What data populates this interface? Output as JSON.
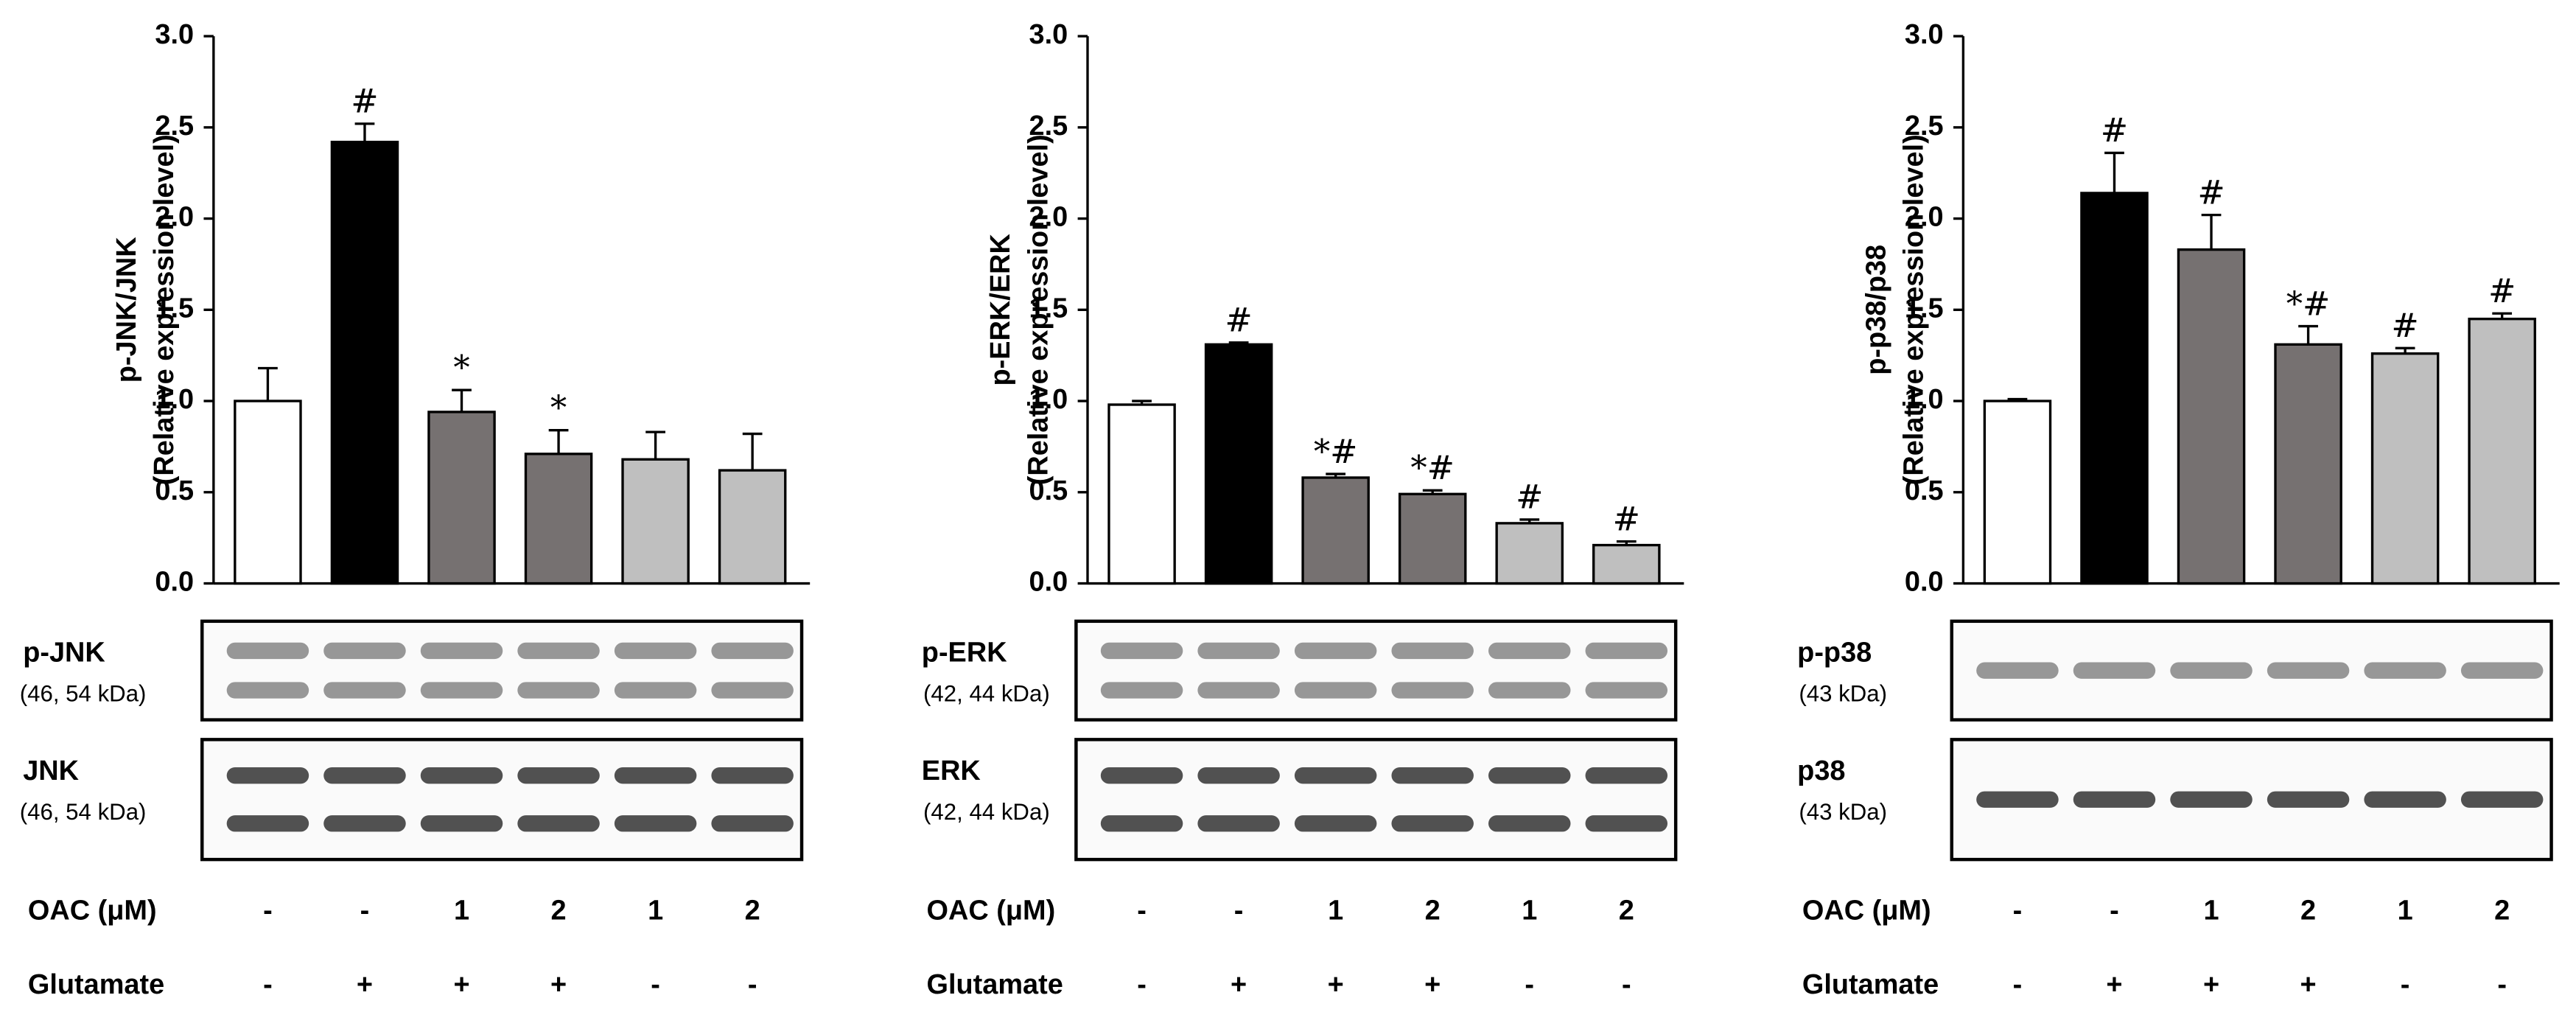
{
  "chart_data": [
    {
      "type": "bar",
      "ylabel": [
        "p-JNK/JNK",
        "(Relative expression level)"
      ],
      "values": [
        1.0,
        2.42,
        0.94,
        0.71,
        0.68,
        0.62
      ],
      "errors": [
        0.18,
        0.1,
        0.12,
        0.13,
        0.15,
        0.2
      ],
      "value_annotations": [
        null,
        "#",
        "*",
        "*",
        null,
        null
      ],
      "colors": [
        "#ffffff",
        "#000000",
        "#767171",
        "#767171",
        "#bfbfbf",
        "#bfbfbf"
      ],
      "ylim": [
        0,
        3
      ],
      "yticks": [
        {
          "value": 0,
          "label": "0.0"
        },
        {
          "value": 0.5,
          "label": "0.5"
        },
        {
          "value": 1,
          "label": "1.0"
        },
        {
          "value": 1.5,
          "label": "1.5"
        },
        {
          "value": 2,
          "label": "2.0"
        },
        {
          "value": 2.5,
          "label": "2.5"
        },
        {
          "value": 3,
          "label": "3.0"
        }
      ],
      "blots": [
        {
          "label": "p-JNK",
          "size": "(46, 54 kDa)"
        },
        {
          "label": "JNK",
          "size": "(46, 54 kDa)"
        }
      ],
      "conditions": [
        {
          "label": "OAC (μM)",
          "values": [
            "-",
            "-",
            "1",
            "2",
            "1",
            "2"
          ]
        },
        {
          "label": "Glutamate",
          "values": [
            "-",
            "+",
            "+",
            "+",
            "-",
            "-"
          ]
        }
      ]
    },
    {
      "type": "bar",
      "ylabel": [
        "p-ERK/ERK",
        "(Relative expression level)"
      ],
      "values": [
        0.98,
        1.31,
        0.58,
        0.49,
        0.33,
        0.21
      ],
      "errors": [
        0.02,
        0.01,
        0.02,
        0.02,
        0.02,
        0.02
      ],
      "value_annotations": [
        null,
        "#",
        "*#",
        "*#",
        "#",
        "#"
      ],
      "colors": [
        "#ffffff",
        "#000000",
        "#767171",
        "#767171",
        "#bfbfbf",
        "#bfbfbf"
      ],
      "ylim": [
        0,
        3
      ],
      "yticks": [
        {
          "value": 0,
          "label": "0.0"
        },
        {
          "value": 0.5,
          "label": "0.5"
        },
        {
          "value": 1,
          "label": "1.0"
        },
        {
          "value": 1.5,
          "label": "1.5"
        },
        {
          "value": 2,
          "label": "2.0"
        },
        {
          "value": 2.5,
          "label": "2.5"
        },
        {
          "value": 3,
          "label": "3.0"
        }
      ],
      "blots": [
        {
          "label": "p-ERK",
          "size": "(42, 44 kDa)"
        },
        {
          "label": "ERK",
          "size": "(42, 44 kDa)"
        }
      ],
      "conditions": [
        {
          "label": "OAC (μM)",
          "values": [
            "-",
            "-",
            "1",
            "2",
            "1",
            "2"
          ]
        },
        {
          "label": "Glutamate",
          "values": [
            "-",
            "+",
            "+",
            "+",
            "-",
            "-"
          ]
        }
      ]
    },
    {
      "type": "bar",
      "ylabel": [
        "p-p38/p38",
        "(Relative expression level)"
      ],
      "values": [
        1.0,
        2.14,
        1.83,
        1.31,
        1.26,
        1.45
      ],
      "errors": [
        0.01,
        0.22,
        0.19,
        0.1,
        0.03,
        0.03
      ],
      "value_annotations": [
        null,
        "#",
        "#",
        "*#",
        "#",
        "#"
      ],
      "colors": [
        "#ffffff",
        "#000000",
        "#767171",
        "#767171",
        "#bfbfbf",
        "#bfbfbf"
      ],
      "ylim": [
        0,
        3
      ],
      "yticks": [
        {
          "value": 0,
          "label": "0.0"
        },
        {
          "value": 0.5,
          "label": "0.5"
        },
        {
          "value": 1,
          "label": "1.0"
        },
        {
          "value": 1.5,
          "label": "1.5"
        },
        {
          "value": 2,
          "label": "2.0"
        },
        {
          "value": 2.5,
          "label": "2.5"
        },
        {
          "value": 3,
          "label": "3.0"
        }
      ],
      "blots": [
        {
          "label": "p-p38",
          "size": "(43 kDa)"
        },
        {
          "label": "p38",
          "size": "(43 kDa)"
        }
      ],
      "conditions": [
        {
          "label": "OAC (μM)",
          "values": [
            "-",
            "-",
            "1",
            "2",
            "1",
            "2"
          ]
        },
        {
          "label": "Glutamate",
          "values": [
            "-",
            "+",
            "+",
            "+",
            "-",
            "-"
          ]
        }
      ]
    }
  ]
}
